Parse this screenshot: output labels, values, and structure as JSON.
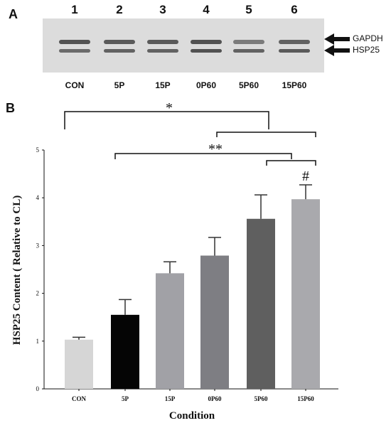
{
  "panel_a": {
    "letter": "A",
    "lanes": [
      "1",
      "2",
      "3",
      "4",
      "5",
      "6"
    ],
    "lane_labels": [
      "CON",
      "5P",
      "15P",
      "0P60",
      "5P60",
      "15P60"
    ],
    "band_labels": [
      "GAPDH",
      "HSP25"
    ]
  },
  "panel_b": {
    "letter": "B"
  },
  "chart_data": {
    "type": "bar",
    "categories": [
      "CON",
      "5P",
      "15P",
      "0P60",
      "5P60",
      "15P60"
    ],
    "values": [
      1.03,
      1.55,
      2.42,
      2.79,
      3.56,
      3.97
    ],
    "errors": [
      0.05,
      0.32,
      0.24,
      0.38,
      0.5,
      0.3
    ],
    "bar_colors": [
      "#d6d6d6",
      "#050505",
      "#a1a1a6",
      "#7e7e83",
      "#5f5f5f",
      "#a9a9ad"
    ],
    "xlabel": "Condition",
    "ylabel": "HSP25 Content ( Relative to CL)",
    "ylim": [
      0,
      5
    ],
    "yticks": [
      "0",
      "1",
      "2",
      "3",
      "4",
      "5"
    ],
    "annotations": {
      "star1": "*",
      "star2": "**",
      "hash": "#"
    }
  }
}
